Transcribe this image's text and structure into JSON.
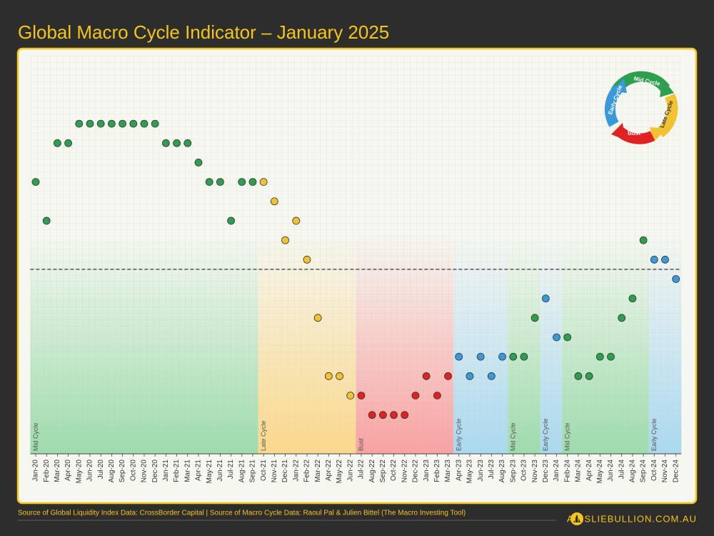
{
  "chart_data": {
    "type": "dot",
    "title": "Global Macro Cycle Indicator – January 2025",
    "categories": [
      "Jan-20",
      "Feb-20",
      "Mar-20",
      "Apr-20",
      "May-20",
      "Jun-20",
      "Jul-20",
      "Aug-20",
      "Sep-20",
      "Oct-20",
      "Nov-20",
      "Dec-20",
      "Jan-21",
      "Feb-21",
      "Mar-21",
      "Apr-21",
      "May-21",
      "Jun-21",
      "Jul-21",
      "Aug-21",
      "Sep-21",
      "Oct-21",
      "Nov-21",
      "Dec-21",
      "Jan-22",
      "Feb-22",
      "Mar-22",
      "Apr-22",
      "May-22",
      "Jun-22",
      "Jul-22",
      "Aug-22",
      "Sep-22",
      "Oct-22",
      "Nov-22",
      "Dec-22",
      "Jan-23",
      "Feb-23",
      "Mar-23",
      "Apr-23",
      "May-23",
      "Jun-23",
      "Jul-23",
      "Aug-23",
      "Sep-23",
      "Oct-23",
      "Nov-23",
      "Dec-23",
      "Jan-24",
      "Feb-24",
      "Mar-24",
      "Apr-24",
      "May-24",
      "Jun-24",
      "Jul-24",
      "Aug-24",
      "Sep-24",
      "Oct-24",
      "Nov-24",
      "Dec-24"
    ],
    "values": [
      4.5,
      2.5,
      6.5,
      6.5,
      7.5,
      7.5,
      7.5,
      7.5,
      7.5,
      7.5,
      7.5,
      7.5,
      6.5,
      6.5,
      6.5,
      5.5,
      4.5,
      4.5,
      2.5,
      4.5,
      4.5,
      4.5,
      3.5,
      1.5,
      2.5,
      0.5,
      -2.5,
      -5.5,
      -5.5,
      -6.5,
      -6.5,
      -7.5,
      -7.5,
      -7.5,
      -7.5,
      -6.5,
      -5.5,
      -6.5,
      -5.5,
      -4.5,
      -5.5,
      -4.5,
      -5.5,
      -4.5,
      -4.5,
      -4.5,
      -2.5,
      -1.5,
      -3.5,
      -3.5,
      -5.5,
      -5.5,
      -4.5,
      -4.5,
      -2.5,
      -1.5,
      1.5,
      0.5,
      0.5,
      -0.5
    ],
    "colors": [
      "#2e9e4f",
      "#2e9e4f",
      "#2e9e4f",
      "#2e9e4f",
      "#2e9e4f",
      "#2e9e4f",
      "#2e9e4f",
      "#2e9e4f",
      "#2e9e4f",
      "#2e9e4f",
      "#2e9e4f",
      "#2e9e4f",
      "#2e9e4f",
      "#2e9e4f",
      "#2e9e4f",
      "#2e9e4f",
      "#2e9e4f",
      "#2e9e4f",
      "#2e9e4f",
      "#2e9e4f",
      "#2e9e4f",
      "#f2c230",
      "#f2c230",
      "#f2c230",
      "#f2c230",
      "#f2c230",
      "#f2c230",
      "#f2c230",
      "#f2c230",
      "#f2c230",
      "#e02222",
      "#e02222",
      "#e02222",
      "#e02222",
      "#e02222",
      "#e02222",
      "#e02222",
      "#e02222",
      "#e02222",
      "#3a9ad9",
      "#3a9ad9",
      "#3a9ad9",
      "#3a9ad9",
      "#3a9ad9",
      "#2e9e4f",
      "#2e9e4f",
      "#2e9e4f",
      "#3a9ad9",
      "#3a9ad9",
      "#2e9e4f",
      "#2e9e4f",
      "#2e9e4f",
      "#2e9e4f",
      "#2e9e4f",
      "#2e9e4f",
      "#2e9e4f",
      "#2e9e4f",
      "#3a9ad9",
      "#3a9ad9",
      "#3a9ad9"
    ],
    "ylim": [
      -9.5,
      11
    ],
    "reference_line": 0,
    "grid": true,
    "phases": [
      {
        "label": "Mid Cycle",
        "start": "Jan-20",
        "color": "#8fd6a0"
      },
      {
        "label": "Late Cycle",
        "start": "Oct-21",
        "color": "#fbd27a"
      },
      {
        "label": "Bust",
        "start": "Jul-22",
        "color": "#f79494"
      },
      {
        "label": "Early Cycle",
        "start": "Apr-23",
        "color": "#9dd3ee"
      },
      {
        "label": "Mid Cycle",
        "start": "Sep-23",
        "color": "#8fd6a0"
      },
      {
        "label": "Early Cycle",
        "start": "Dec-23",
        "color": "#9dd3ee"
      },
      {
        "label": "Mid Cycle",
        "start": "Feb-24",
        "color": "#8fd6a0"
      },
      {
        "label": "Early Cycle",
        "start": "Oct-24",
        "color": "#9dd3ee"
      }
    ],
    "cycle_diagram": [
      "Mid Cycle",
      "Late Cycle",
      "Bust",
      "Early Cycle"
    ],
    "source": "Source of Global Liquidity Index Data: CrossBorder Capital | Source of Macro Cycle Data: Raoul Pal & Julien Bittel (The Macro Investing Tool)",
    "brand": "AINSLIEBULLION.COM.AU"
  }
}
